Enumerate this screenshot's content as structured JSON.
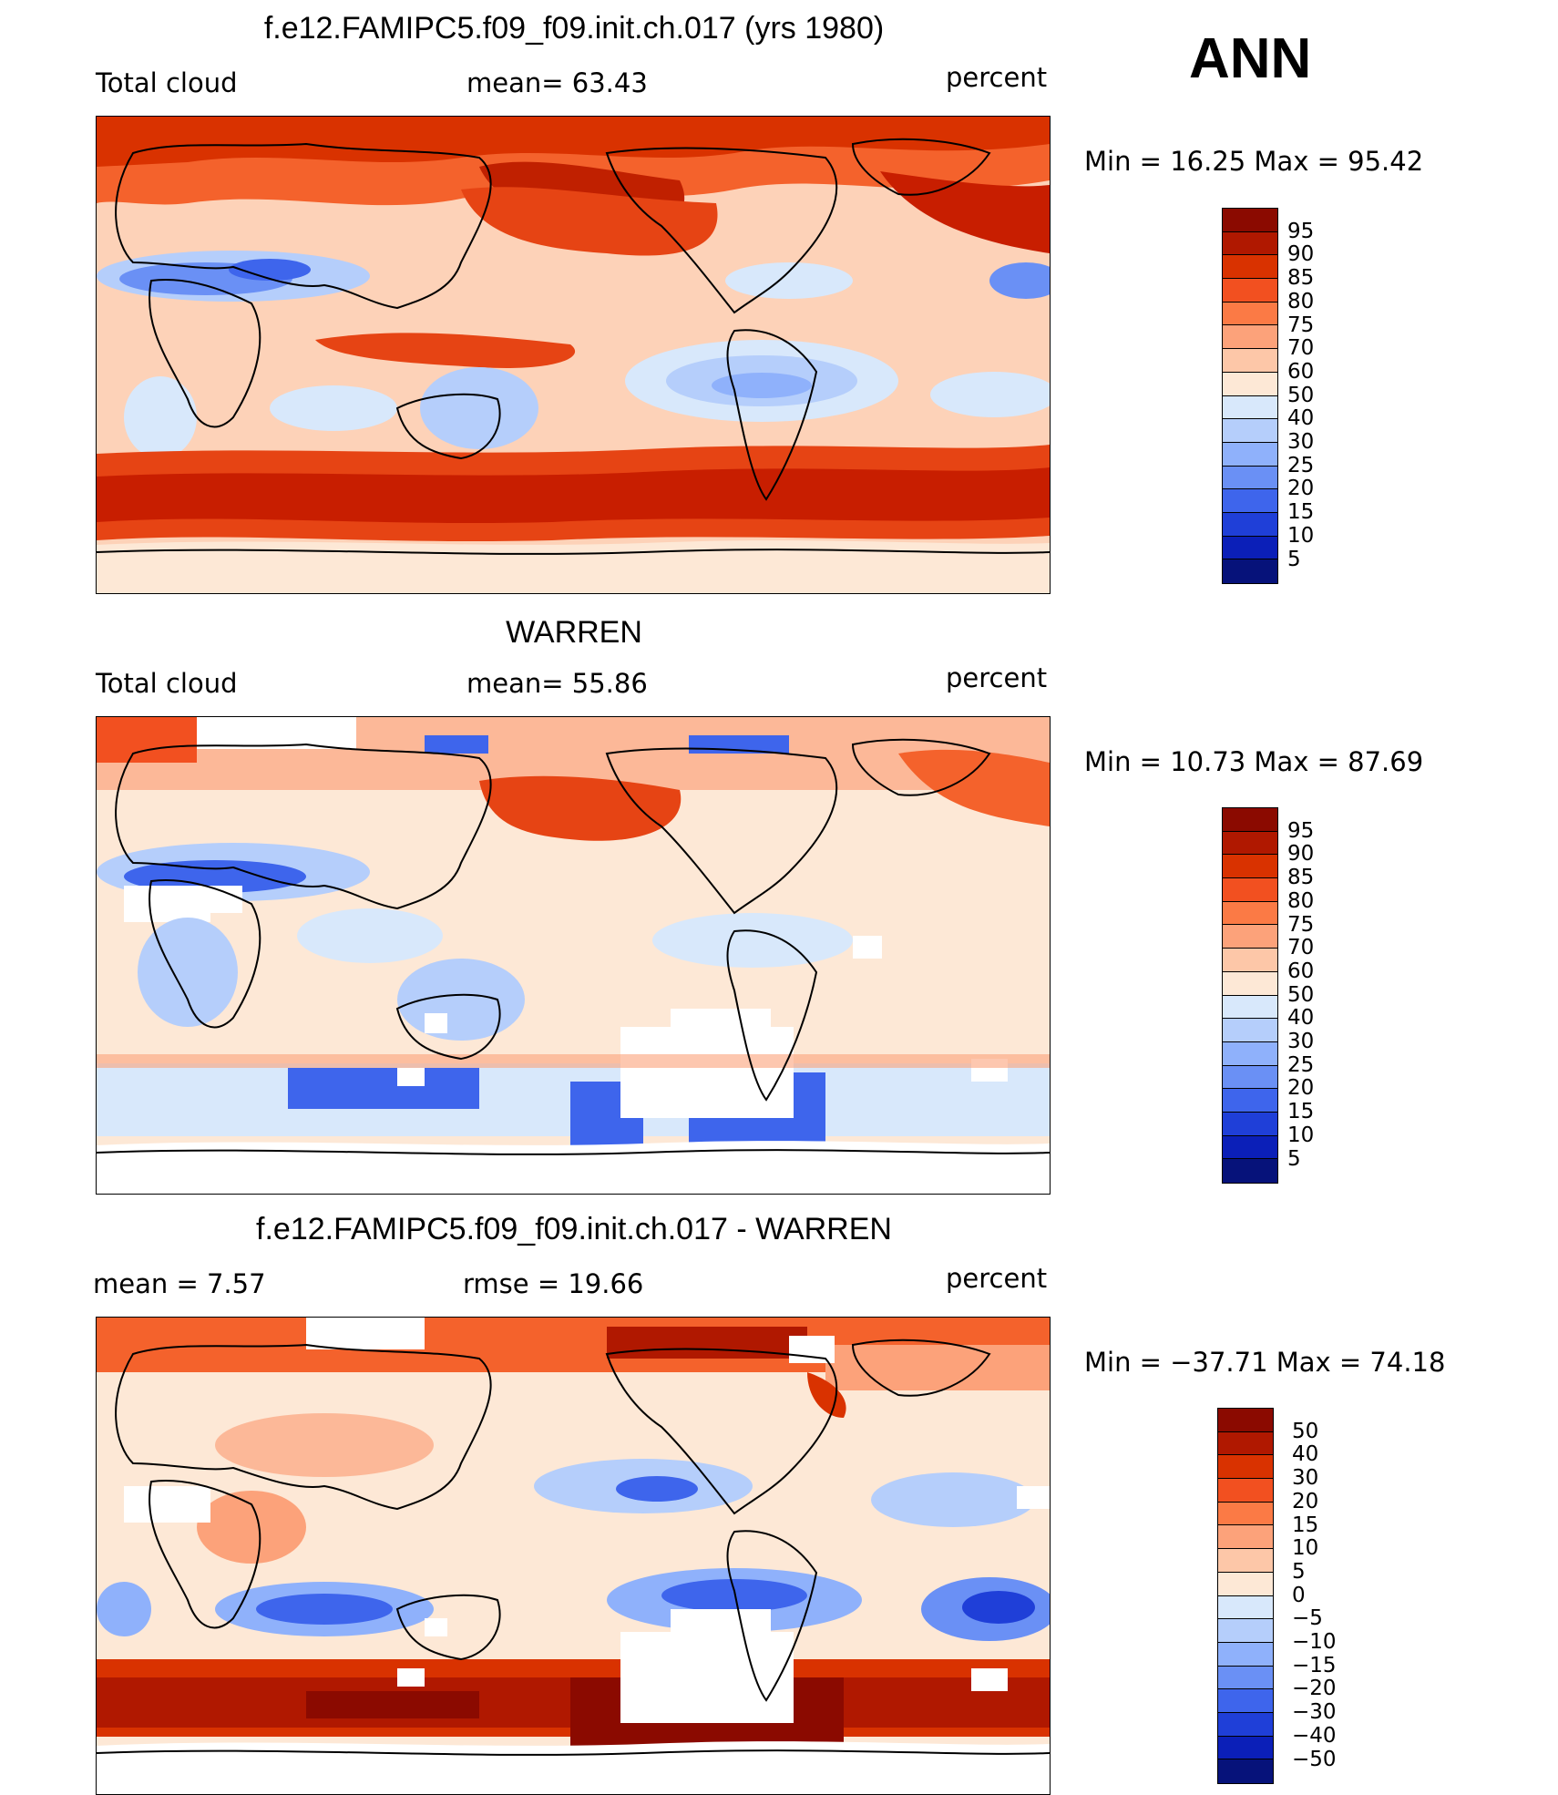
{
  "header": {
    "season": "ANN"
  },
  "panels": [
    {
      "title": "f.e12.FAMIPC5.f09_f09.init.ch.017 (yrs 1980)",
      "left_label": "Total cloud",
      "stat1": "mean=   63.43",
      "units": "percent",
      "minmax": "Min  =    16.25  Max  =    95.42",
      "colorbar": {
        "labels": [
          "95",
          "90",
          "85",
          "80",
          "75",
          "70",
          "60",
          "50",
          "40",
          "30",
          "25",
          "20",
          "15",
          "10",
          "5"
        ],
        "colors": [
          "#8b0a00",
          "#b01800",
          "#d93200",
          "#f25020",
          "#fb7a45",
          "#fca27a",
          "#fdc7a8",
          "#fde8d6",
          "#d8e8fb",
          "#b5cefb",
          "#8fb1fb",
          "#6a90f5",
          "#3e65ec",
          "#1f3fd8",
          "#0b1fb8",
          "#06127a"
        ]
      }
    },
    {
      "title": "WARREN",
      "left_label": "Total cloud",
      "stat1": "mean=   55.86",
      "units": "percent",
      "minmax": "Min  =    10.73  Max  =    87.69",
      "colorbar": {
        "labels": [
          "95",
          "90",
          "85",
          "80",
          "75",
          "70",
          "60",
          "50",
          "40",
          "30",
          "25",
          "20",
          "15",
          "10",
          "5"
        ],
        "colors": [
          "#8b0a00",
          "#b01800",
          "#d93200",
          "#f25020",
          "#fb7a45",
          "#fca27a",
          "#fdc7a8",
          "#fde8d6",
          "#d8e8fb",
          "#b5cefb",
          "#8fb1fb",
          "#6a90f5",
          "#3e65ec",
          "#1f3fd8",
          "#0b1fb8",
          "#06127a"
        ]
      }
    },
    {
      "title": "f.e12.FAMIPC5.f09_f09.init.ch.017 - WARREN",
      "left_label": "mean  =     7.57",
      "stat1": "rmse  =    19.66",
      "units": "percent",
      "minmax": "Min  =  −37.71  Max  =    74.18",
      "colorbar": {
        "labels": [
          "50",
          "40",
          "30",
          "20",
          "15",
          "10",
          "5",
          "0",
          "−5",
          "−10",
          "−15",
          "−20",
          "−30",
          "−40",
          "−50"
        ],
        "colors": [
          "#8b0a00",
          "#b01800",
          "#d93200",
          "#f25020",
          "#fb7a45",
          "#fca27a",
          "#fdc7a8",
          "#fde8d6",
          "#d8e8fb",
          "#b5cefb",
          "#8fb1fb",
          "#6a90f5",
          "#3e65ec",
          "#1f3fd8",
          "#0b1fb8",
          "#06127a"
        ]
      }
    }
  ]
}
